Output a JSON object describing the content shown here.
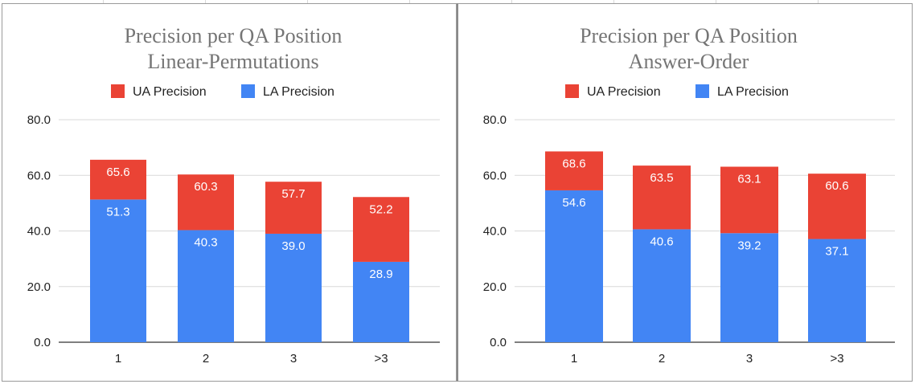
{
  "colors": {
    "ua": "#ea4335",
    "la": "#4285f4",
    "gridline": "#d9d9d9",
    "axis": "#333333"
  },
  "chart_data": [
    {
      "type": "bar",
      "stacked": true,
      "title": [
        "Precision per QA Position",
        "Linear-Permutations"
      ],
      "legend": [
        "UA Precision",
        "LA Precision"
      ],
      "legend_position": "top",
      "categories": [
        "1",
        "2",
        "3",
        ">3"
      ],
      "series": [
        {
          "name": "LA Precision",
          "values": [
            51.3,
            40.3,
            39.0,
            28.9
          ],
          "labels": [
            "51.3",
            "40.3",
            "39.0",
            "28.9"
          ]
        },
        {
          "name": "UA Precision",
          "totals": [
            65.6,
            60.3,
            57.7,
            52.2
          ],
          "labels": [
            "65.6",
            "60.3",
            "57.7",
            "52.2"
          ]
        }
      ],
      "ylim": [
        0,
        80
      ],
      "yticks": [
        "0.0",
        "20.0",
        "40.0",
        "60.0",
        "80.0"
      ],
      "ytick_values": [
        0,
        20,
        40,
        60,
        80
      ],
      "grid": true
    },
    {
      "type": "bar",
      "stacked": true,
      "title": [
        "Precision per QA Position",
        "Answer-Order"
      ],
      "legend": [
        "UA Precision",
        "LA Precision"
      ],
      "legend_position": "top",
      "categories": [
        "1",
        "2",
        "3",
        ">3"
      ],
      "series": [
        {
          "name": "LA Precision",
          "values": [
            54.6,
            40.6,
            39.2,
            37.1
          ],
          "labels": [
            "54.6",
            "40.6",
            "39.2",
            "37.1"
          ]
        },
        {
          "name": "UA Precision",
          "totals": [
            68.6,
            63.5,
            63.1,
            60.6
          ],
          "labels": [
            "68.6",
            "63.5",
            "63.1",
            "60.6"
          ]
        }
      ],
      "ylim": [
        0,
        80
      ],
      "yticks": [
        "0.0",
        "20.0",
        "40.0",
        "60.0",
        "80.0"
      ],
      "ytick_values": [
        0,
        20,
        40,
        60,
        80
      ],
      "grid": true
    }
  ]
}
